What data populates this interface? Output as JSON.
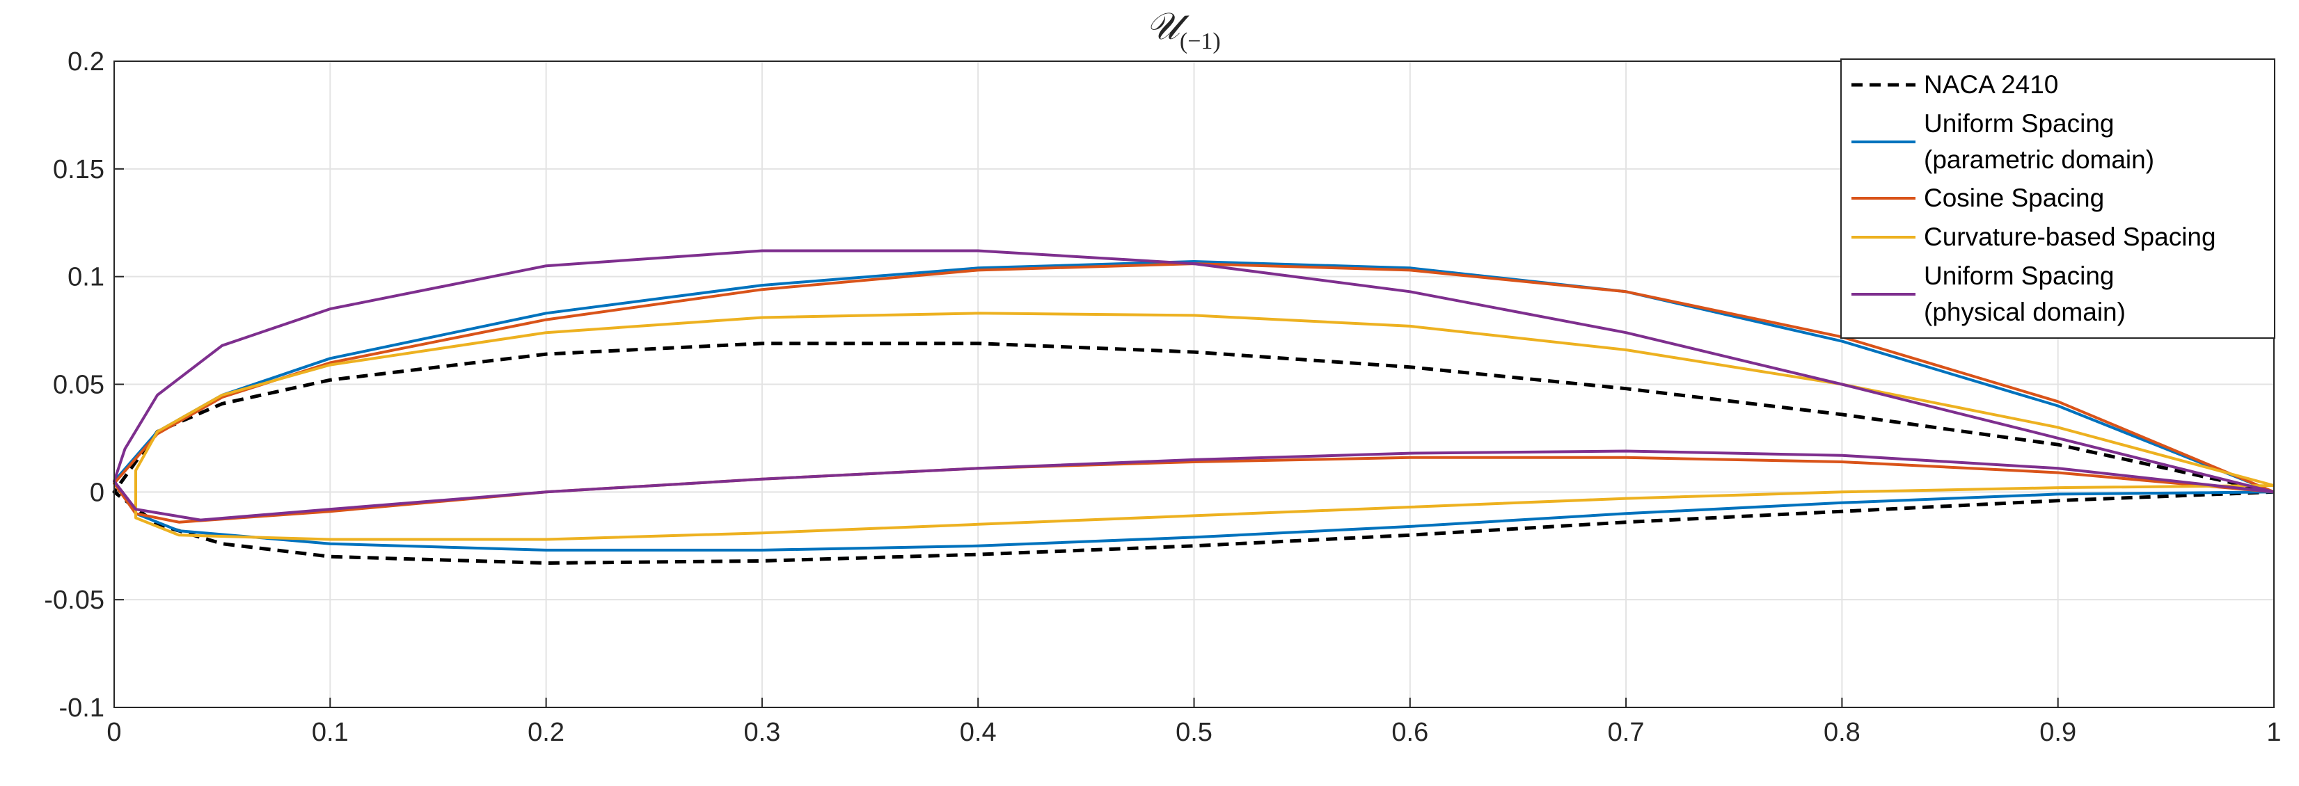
{
  "chart_data": {
    "type": "line",
    "title": "𝒰",
    "title_subscript": "(−1)",
    "xlim": [
      0,
      1
    ],
    "ylim": [
      -0.1,
      0.2
    ],
    "xticks": [
      0,
      0.1,
      0.2,
      0.3,
      0.4,
      0.5,
      0.6,
      0.7,
      0.8,
      0.9,
      1
    ],
    "yticks": [
      -0.1,
      -0.05,
      0,
      0.05,
      0.1,
      0.15,
      0.2
    ],
    "grid": true,
    "legend": "upper right",
    "series": [
      {
        "name": "NACA 2410",
        "color": "#000000",
        "line_style": "dashed",
        "x": [
          1,
          0.9,
          0.8,
          0.7,
          0.6,
          0.5,
          0.4,
          0.3,
          0.2,
          0.1,
          0.05,
          0.02,
          0,
          0.02,
          0.05,
          0.1,
          0.2,
          0.3,
          0.4,
          0.5,
          0.6,
          0.7,
          0.8,
          0.9,
          1
        ],
        "values": [
          0,
          0.022,
          0.036,
          0.048,
          0.058,
          0.065,
          0.069,
          0.069,
          0.064,
          0.052,
          0.041,
          0.028,
          0,
          -0.015,
          -0.024,
          -0.03,
          -0.033,
          -0.032,
          -0.029,
          -0.025,
          -0.02,
          -0.014,
          -0.009,
          -0.004,
          0
        ]
      },
      {
        "name": "Uniform Spacing\n(parametric domain)",
        "color": "#0072bd",
        "line_style": "solid",
        "x": [
          1,
          0.9,
          0.8,
          0.7,
          0.6,
          0.5,
          0.4,
          0.3,
          0.2,
          0.1,
          0.05,
          0.02,
          0,
          0.01,
          0.03,
          0.1,
          0.2,
          0.3,
          0.4,
          0.5,
          0.6,
          0.7,
          0.8,
          0.9,
          1
        ],
        "values": [
          0,
          0.04,
          0.07,
          0.093,
          0.104,
          0.107,
          0.104,
          0.096,
          0.083,
          0.062,
          0.045,
          0.028,
          0.005,
          -0.01,
          -0.018,
          -0.024,
          -0.027,
          -0.027,
          -0.025,
          -0.021,
          -0.016,
          -0.01,
          -0.005,
          -0.001,
          0
        ]
      },
      {
        "name": "Cosine Spacing",
        "color": "#d95319",
        "line_style": "solid",
        "x": [
          1,
          0.9,
          0.8,
          0.7,
          0.6,
          0.5,
          0.4,
          0.3,
          0.2,
          0.1,
          0.05,
          0.02,
          0,
          0.01,
          0.03,
          0.1,
          0.2,
          0.3,
          0.4,
          0.5,
          0.6,
          0.7,
          0.8,
          0.9,
          1
        ],
        "values": [
          0,
          0.042,
          0.072,
          0.093,
          0.103,
          0.106,
          0.103,
          0.094,
          0.08,
          0.06,
          0.044,
          0.027,
          0.004,
          -0.01,
          -0.014,
          -0.009,
          0,
          0.006,
          0.011,
          0.014,
          0.016,
          0.016,
          0.014,
          0.009,
          0
        ]
      },
      {
        "name": "Curvature-based Spacing",
        "color": "#edb120",
        "line_style": "solid",
        "x": [
          1,
          0.9,
          0.8,
          0.7,
          0.6,
          0.5,
          0.4,
          0.3,
          0.2,
          0.1,
          0.05,
          0.02,
          0.01,
          0.01,
          0.03,
          0.1,
          0.2,
          0.3,
          0.4,
          0.5,
          0.6,
          0.7,
          0.8,
          0.9,
          1
        ],
        "values": [
          0.003,
          0.03,
          0.05,
          0.066,
          0.077,
          0.082,
          0.083,
          0.081,
          0.074,
          0.059,
          0.045,
          0.028,
          0.01,
          -0.012,
          -0.02,
          -0.022,
          -0.022,
          -0.019,
          -0.015,
          -0.011,
          -0.007,
          -0.003,
          0,
          0.002,
          0.003
        ]
      },
      {
        "name": "Uniform Spacing\n(physical domain)",
        "color": "#7e2f8e",
        "line_style": "solid",
        "x": [
          1,
          0.9,
          0.8,
          0.7,
          0.6,
          0.5,
          0.4,
          0.3,
          0.2,
          0.1,
          0.05,
          0.02,
          0.005,
          0,
          0.01,
          0.04,
          0.1,
          0.2,
          0.3,
          0.4,
          0.5,
          0.6,
          0.7,
          0.8,
          0.9,
          1
        ],
        "values": [
          0,
          0.025,
          0.05,
          0.074,
          0.093,
          0.106,
          0.112,
          0.112,
          0.105,
          0.085,
          0.068,
          0.045,
          0.02,
          0.005,
          -0.008,
          -0.013,
          -0.008,
          0,
          0.006,
          0.011,
          0.015,
          0.018,
          0.019,
          0.017,
          0.011,
          0
        ]
      }
    ]
  }
}
